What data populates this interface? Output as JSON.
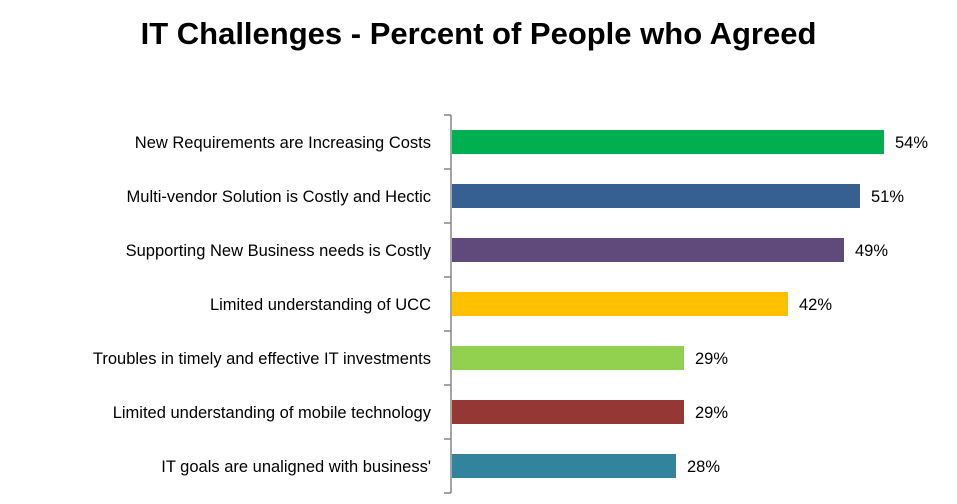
{
  "chart_data": {
    "type": "bar",
    "orientation": "horizontal",
    "title": "IT Challenges - Percent of People who Agreed",
    "xlabel": "",
    "ylabel": "",
    "xlim": [
      0,
      60
    ],
    "grid": false,
    "legend": "none",
    "categories": [
      "New Requirements are Increasing Costs",
      "Multi-vendor Solution is Costly and Hectic",
      "Supporting New Business needs is Costly",
      "Limited understanding of UCC",
      "Troubles in timely and effective IT investments",
      "Limited understanding of mobile technology",
      "IT goals are unaligned with business'"
    ],
    "values": [
      54,
      51,
      49,
      42,
      29,
      29,
      28
    ],
    "data_labels": [
      "54%",
      "51%",
      "49%",
      "42%",
      "29%",
      "29%",
      "28%"
    ],
    "colors": [
      "#00B050",
      "#366092",
      "#604A7B",
      "#FFC000",
      "#92D050",
      "#953735",
      "#31849B"
    ]
  }
}
